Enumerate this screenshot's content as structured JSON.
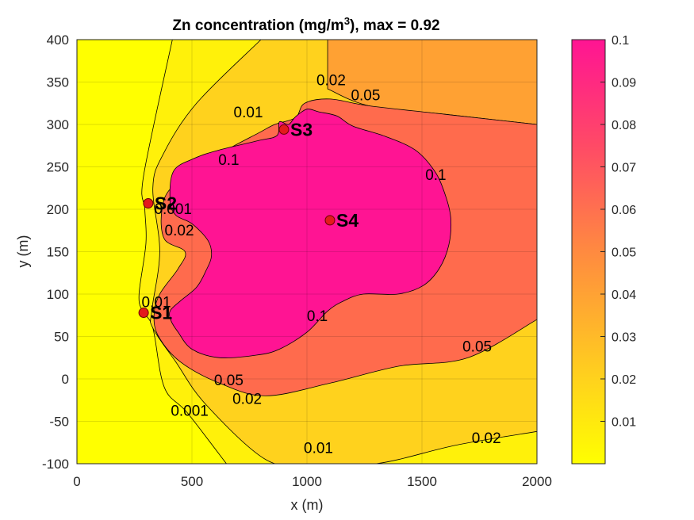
{
  "chart_data": {
    "type": "heatmap",
    "subtype": "filled-contour",
    "title": "Zn concentration (mg/m",
    "title_sup": "3",
    "title_tail": "), max =  0.92",
    "xlabel": "x (m)",
    "ylabel": "y (m)",
    "xlim": [
      0,
      2000
    ],
    "ylim": [
      -100,
      400
    ],
    "xticks": [
      "0",
      "500",
      "1000",
      "1500",
      "2000"
    ],
    "yticks": [
      "-100",
      "-50",
      "0",
      "50",
      "100",
      "150",
      "200",
      "250",
      "300",
      "350",
      "400"
    ],
    "grid": true,
    "colorbar": {
      "min": 0,
      "max": 0.1,
      "ticks": [
        "0.01",
        "0.02",
        "0.03",
        "0.04",
        "0.05",
        "0.06",
        "0.07",
        "0.08",
        "0.09",
        "0.1"
      ],
      "low_color": "#ffff00",
      "high_color": "#ff1493"
    },
    "contour_levels": [
      0.001,
      0.01,
      0.02,
      0.05,
      0.1
    ],
    "contour_labels": [
      {
        "text": "0.02",
        "x": 1105,
        "y": 352
      },
      {
        "text": "0.05",
        "x": 1255,
        "y": 334
      },
      {
        "text": "0.01",
        "x": 745,
        "y": 314
      },
      {
        "text": "0.1",
        "x": 660,
        "y": 258
      },
      {
        "text": "0.1",
        "x": 1560,
        "y": 240
      },
      {
        "text": "0.1",
        "x": 1045,
        "y": 74
      },
      {
        "text": "0.05",
        "x": 1740,
        "y": 38
      },
      {
        "text": "0.05",
        "x": 660,
        "y": -2
      },
      {
        "text": "0.02",
        "x": 740,
        "y": -24
      },
      {
        "text": "0.001",
        "x": 490,
        "y": -38
      },
      {
        "text": "0.01",
        "x": 1050,
        "y": -82
      },
      {
        "text": "0.02",
        "x": 1780,
        "y": -70
      },
      {
        "text": "0.001",
        "x": 418,
        "y": 200
      },
      {
        "text": "0.02",
        "x": 445,
        "y": 175
      },
      {
        "text": "0.01",
        "x": 345,
        "y": 90
      }
    ],
    "sources": [
      {
        "name": "S1",
        "x": 290,
        "y": 78
      },
      {
        "name": "S2",
        "x": 310,
        "y": 207
      },
      {
        "name": "S3",
        "x": 900,
        "y": 294
      },
      {
        "name": "S4",
        "x": 1100,
        "y": 187
      }
    ],
    "regions": [
      {
        "level": 0.001,
        "color": "#fff10a",
        "points": [
          [
            415,
            400
          ],
          [
            290,
            240
          ],
          [
            295,
            200
          ],
          [
            300,
            160
          ],
          [
            270,
            100
          ],
          [
            285,
            80
          ],
          [
            330,
            60
          ],
          [
            380,
            -10
          ],
          [
            480,
            -40
          ],
          [
            650,
            -100
          ]
        ]
      },
      {
        "level": 0.01,
        "color": "#ffd21d",
        "points": [
          [
            800,
            400
          ],
          [
            520,
            325
          ],
          [
            375,
            265
          ],
          [
            330,
            225
          ],
          [
            360,
            150
          ],
          [
            325,
            80
          ],
          [
            330,
            60
          ],
          [
            430,
            20
          ],
          [
            560,
            -30
          ],
          [
            820,
            -95
          ],
          [
            1000,
            -100
          ],
          [
            1300,
            -100
          ],
          [
            1650,
            -78
          ],
          [
            2000,
            -62
          ]
        ]
      },
      {
        "level": 0.02,
        "color": "#ffa133",
        "points": [
          [
            1090,
            342
          ],
          [
            1270,
            322
          ],
          [
            1600,
            312
          ],
          [
            2000,
            300
          ]
        ]
      },
      {
        "level": 0.05,
        "color": "#ff6b4d",
        "points": [
          [
            2000,
            300
          ],
          [
            1600,
            312
          ],
          [
            1270,
            322
          ],
          [
            1100,
            330
          ],
          [
            990,
            325
          ],
          [
            950,
            308
          ],
          [
            860,
            300
          ],
          [
            790,
            290
          ],
          [
            620,
            265
          ],
          [
            420,
            228
          ],
          [
            370,
            200
          ],
          [
            380,
            165
          ],
          [
            470,
            150
          ],
          [
            440,
            130
          ],
          [
            360,
            100
          ],
          [
            335,
            75
          ],
          [
            355,
            50
          ],
          [
            450,
            20
          ],
          [
            620,
            -5
          ],
          [
            820,
            -20
          ],
          [
            1100,
            -5
          ],
          [
            1400,
            15
          ],
          [
            1700,
            25
          ],
          [
            2000,
            70
          ]
        ]
      },
      {
        "level": 0.1,
        "color": "#ff1493",
        "points": [
          [
            880,
            303
          ],
          [
            920,
            300
          ],
          [
            950,
            309
          ],
          [
            1000,
            318
          ],
          [
            1050,
            315
          ],
          [
            1130,
            310
          ],
          [
            1200,
            298
          ],
          [
            1340,
            286
          ],
          [
            1470,
            270
          ],
          [
            1555,
            245
          ],
          [
            1600,
            218
          ],
          [
            1625,
            190
          ],
          [
            1617,
            158
          ],
          [
            1575,
            130
          ],
          [
            1505,
            110
          ],
          [
            1395,
            100
          ],
          [
            1245,
            100
          ],
          [
            1160,
            92
          ],
          [
            1090,
            80
          ],
          [
            1000,
            55
          ],
          [
            880,
            35
          ],
          [
            780,
            28
          ],
          [
            620,
            25
          ],
          [
            500,
            35
          ],
          [
            440,
            55
          ],
          [
            410,
            68
          ],
          [
            405,
            80
          ],
          [
            450,
            92
          ],
          [
            520,
            108
          ],
          [
            560,
            127
          ],
          [
            585,
            145
          ],
          [
            570,
            163
          ],
          [
            500,
            183
          ],
          [
            430,
            193
          ],
          [
            405,
            210
          ],
          [
            420,
            245
          ],
          [
            510,
            260
          ],
          [
            620,
            270
          ],
          [
            790,
            281
          ],
          [
            870,
            287
          ]
        ]
      }
    ]
  }
}
